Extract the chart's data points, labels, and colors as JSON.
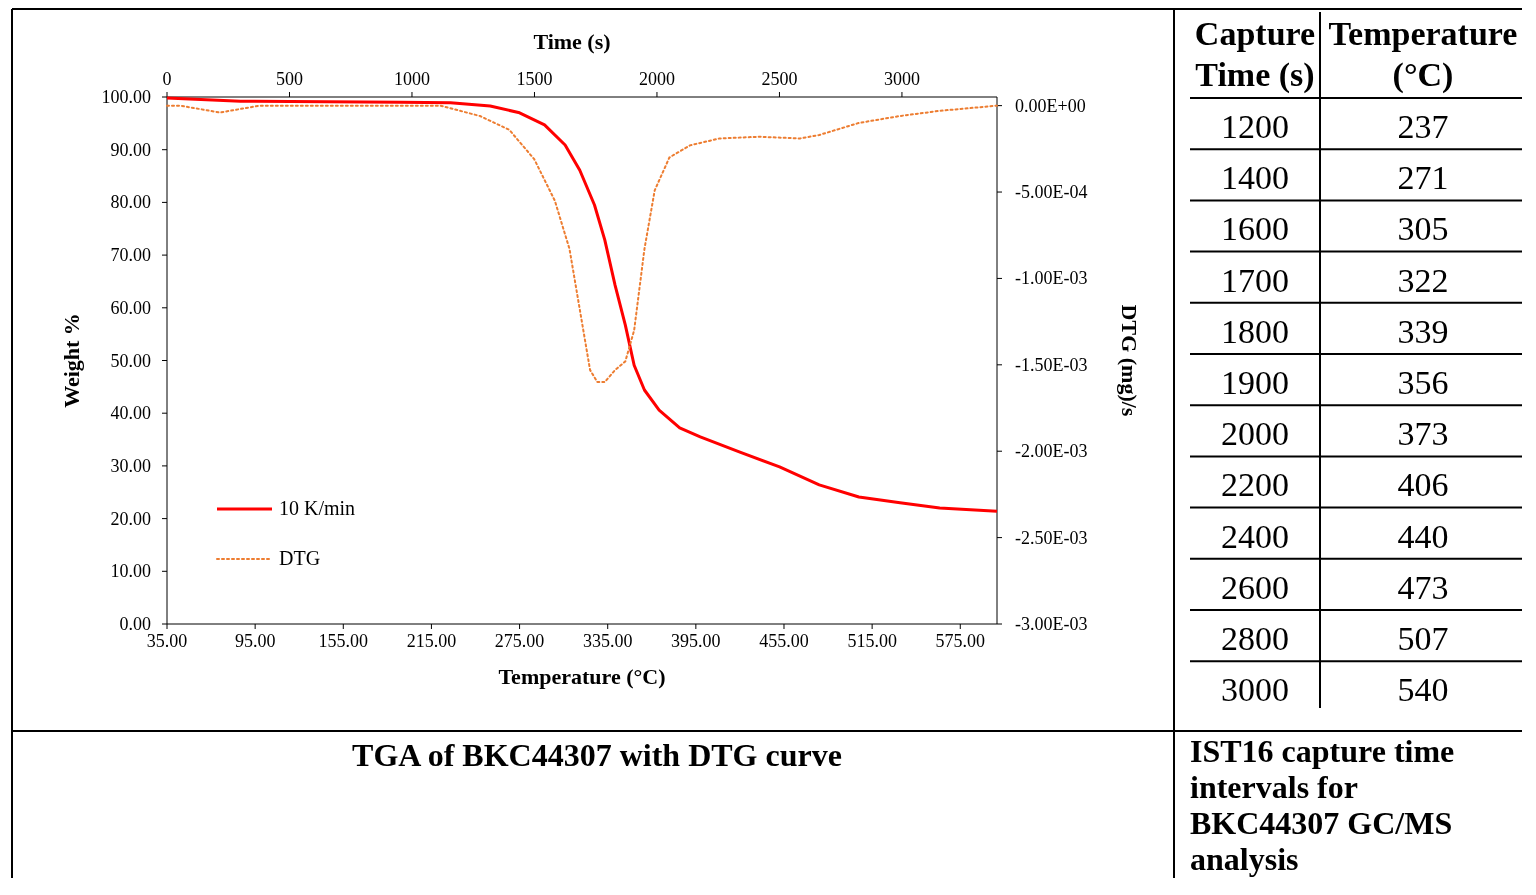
{
  "chart_data": [
    {
      "type": "line",
      "title": "TGA of BKC44307 with DTG curve",
      "xlabel": "Temperature (°C)",
      "ylabel": "Weight %",
      "y2label": "DTG (mg)/s",
      "x2label": "Time (s)",
      "xlim": [
        35,
        600
      ],
      "xticks": [
        {
          "value": 35,
          "label": "35.00"
        },
        {
          "value": 95,
          "label": "95.00"
        },
        {
          "value": 155,
          "label": "155.00"
        },
        {
          "value": 215,
          "label": "215.00"
        },
        {
          "value": 275,
          "label": "275.00"
        },
        {
          "value": 335,
          "label": "335.00"
        },
        {
          "value": 395,
          "label": "395.00"
        },
        {
          "value": 455,
          "label": "455.00"
        },
        {
          "value": 515,
          "label": "515.00"
        },
        {
          "value": 575,
          "label": "575.00"
        }
      ],
      "x2lim": [
        0,
        3388
      ],
      "x2ticks": [
        0,
        500,
        1000,
        1500,
        2000,
        2500,
        3000
      ],
      "ylim": [
        0,
        100
      ],
      "yticks": [
        {
          "value": 0,
          "label": "0.00"
        },
        {
          "value": 10,
          "label": "10.00"
        },
        {
          "value": 20,
          "label": "20.00"
        },
        {
          "value": 30,
          "label": "30.00"
        },
        {
          "value": 40,
          "label": "40.00"
        },
        {
          "value": 50,
          "label": "50.00"
        },
        {
          "value": 60,
          "label": "60.00"
        },
        {
          "value": 70,
          "label": "70.00"
        },
        {
          "value": 80,
          "label": "80.00"
        },
        {
          "value": 90,
          "label": "90.00"
        },
        {
          "value": 100,
          "label": "100.00"
        }
      ],
      "y2lim": [
        -0.003,
        5e-05
      ],
      "y2ticks": [
        {
          "value": 0,
          "label": "0.00E+00"
        },
        {
          "value": -0.0005,
          "label": "-5.00E-04"
        },
        {
          "value": -0.001,
          "label": "-1.00E-03"
        },
        {
          "value": -0.0015,
          "label": "-1.50E-03"
        },
        {
          "value": -0.002,
          "label": "-2.00E-03"
        },
        {
          "value": -0.0025,
          "label": "-2.50E-03"
        },
        {
          "value": -0.003,
          "label": "-3.00E-03"
        }
      ],
      "legend": "bottom left",
      "series": [
        {
          "name": "10 K/min",
          "color": "#ff0000",
          "line_style": "solid",
          "x": [
            35,
            85,
            194,
            228,
            255,
            275,
            292,
            306,
            316,
            326,
            333,
            340,
            347,
            353,
            360,
            370,
            384,
            398,
            425,
            452,
            479,
            506,
            534,
            561,
            600
          ],
          "values": [
            99.8,
            99.2,
            99.0,
            98.9,
            98.3,
            97.0,
            94.7,
            90.9,
            86.1,
            79.5,
            72.9,
            64.3,
            56.7,
            49.1,
            44.4,
            40.6,
            37.2,
            35.5,
            32.6,
            29.8,
            26.4,
            24.1,
            23.0,
            22.0,
            21.4
          ]
        },
        {
          "name": "DTG",
          "color": "#ed7d31",
          "line_style": "dotted",
          "axis": "y2",
          "x": [
            35,
            44,
            71,
            98,
            126,
            194,
            221,
            248,
            268,
            285,
            299,
            309,
            316,
            323,
            328,
            333,
            340,
            347,
            353,
            360,
            367,
            377,
            391,
            411,
            438,
            466,
            479,
            506,
            534,
            561,
            600
          ],
          "values": [
            0,
            0,
            -4e-05,
            0,
            0,
            0,
            0,
            -6e-05,
            -0.00014,
            -0.00031,
            -0.00055,
            -0.00083,
            -0.00118,
            -0.00153,
            -0.0016,
            -0.0016,
            -0.00153,
            -0.00148,
            -0.0013,
            -0.00083,
            -0.00049,
            -0.0003,
            -0.00023,
            -0.00019,
            -0.00018,
            -0.00019,
            -0.00017,
            -0.0001,
            -6e-05,
            -3e-05,
            0
          ]
        }
      ]
    },
    {
      "type": "other",
      "title": "IST16 capture time intervals for BKC44307 GC/MS analysis",
      "xlabel": "Capture Time (s)",
      "ylabel": "Temperature (°C)",
      "data_labels": true,
      "categories": [
        "1200",
        "1400",
        "1600",
        "1700",
        "1800",
        "1900",
        "2000",
        "2200",
        "2400",
        "2600",
        "2800",
        "3000"
      ],
      "values": [
        237,
        271,
        305,
        322,
        339,
        356,
        373,
        406,
        440,
        473,
        507,
        540
      ]
    }
  ]
}
